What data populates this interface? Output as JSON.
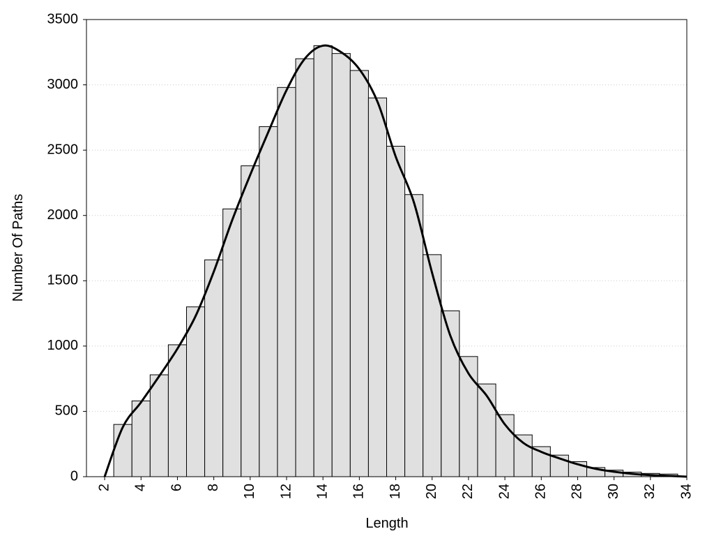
{
  "chart_data": {
    "type": "histogram",
    "xlabel": "Length",
    "ylabel": "Number Of Paths",
    "bins": [
      2.5,
      3.5,
      4.5,
      5.5,
      6.5,
      7.5,
      8.5,
      9.5,
      10.5,
      11.5,
      12.5,
      13.5,
      14.5,
      15.5,
      16.5,
      17.5,
      18.5,
      19.5,
      20.5,
      21.5,
      22.5,
      23.5,
      24.5,
      25.5,
      26.5,
      27.5,
      28.5,
      29.5,
      30.5,
      31.5,
      32.5,
      33.5
    ],
    "values": [
      400,
      580,
      780,
      1010,
      1300,
      1660,
      2050,
      2380,
      2680,
      2980,
      3200,
      3300,
      3240,
      3110,
      2900,
      2530,
      2160,
      1700,
      1270,
      920,
      710,
      475,
      320,
      230,
      165,
      115,
      70,
      50,
      35,
      25,
      20
    ],
    "color": "#e0e0e0",
    "edge_color": "#000000",
    "line": {
      "x": [
        2,
        3,
        4,
        5,
        6,
        7,
        8,
        9,
        10,
        11,
        12,
        13,
        14,
        15,
        16,
        17,
        18,
        19,
        20,
        21,
        22,
        23,
        24,
        25,
        26,
        27,
        28,
        29,
        30,
        31,
        32,
        33,
        34
      ],
      "values": [
        0,
        380,
        570,
        770,
        980,
        1230,
        1570,
        1960,
        2310,
        2640,
        2960,
        3200,
        3300,
        3250,
        3120,
        2870,
        2450,
        2100,
        1560,
        1080,
        790,
        620,
        400,
        260,
        190,
        140,
        95,
        60,
        38,
        22,
        12,
        6,
        0
      ],
      "color": "#000000"
    },
    "xlim": [
      1,
      34
    ],
    "ylim": [
      0,
      3500
    ],
    "xticks": [
      2,
      4,
      6,
      8,
      10,
      12,
      14,
      16,
      18,
      20,
      22,
      24,
      26,
      28,
      30,
      32,
      34
    ],
    "yticks": [
      0,
      500,
      1000,
      1500,
      2000,
      2500,
      3000,
      3500
    ],
    "grid": true
  }
}
